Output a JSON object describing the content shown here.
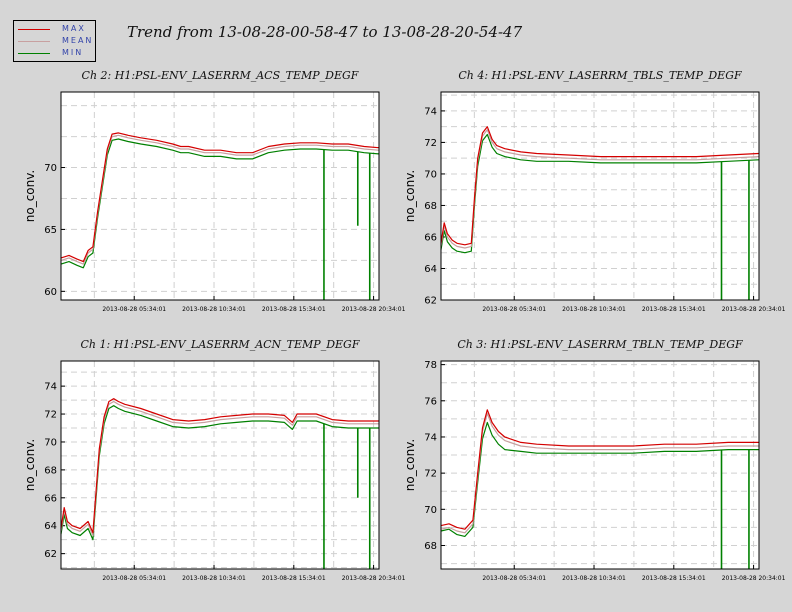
{
  "title": "Trend from 13-08-28-00-58-47 to 13-08-28-20-54-47",
  "legend": {
    "items": [
      {
        "label": "MAX",
        "color": "#d40000"
      },
      {
        "label": "MEAN",
        "color": "#c8a0a0"
      },
      {
        "label": "MIN",
        "color": "#008000"
      }
    ]
  },
  "chart_data": [
    {
      "type": "line",
      "title": "Ch 2: H1:PSL-ENV_LASERRM_ACS_TEMP_DEGF",
      "ylabel": "no_conv.",
      "xlabel": "",
      "xlim": [
        0,
        19.93
      ],
      "ylim": [
        59.3,
        76.1
      ],
      "yticks": [
        60,
        65,
        70
      ],
      "xticks": [
        {
          "x": 4.59,
          "label": "2013-08-28 05:34:01"
        },
        {
          "x": 9.59,
          "label": "2013-08-28 10:34:01"
        },
        {
          "x": 14.59,
          "label": "2013-08-28 15:34:01"
        },
        {
          "x": 19.59,
          "label": "2013-08-28 20:34:01"
        }
      ],
      "grid": true,
      "x": [
        0,
        0.5,
        1.0,
        1.4,
        1.7,
        2.0,
        2.3,
        2.6,
        2.9,
        3.2,
        3.6,
        4.2,
        5,
        6,
        7,
        7.5,
        8,
        9,
        10,
        11,
        12,
        13,
        14,
        15,
        16,
        17,
        18,
        19,
        19.9
      ],
      "series": [
        {
          "name": "MAX",
          "color": "#d40000",
          "values": [
            62.7,
            62.9,
            62.6,
            62.4,
            63.3,
            63.6,
            66.5,
            69.0,
            71.5,
            72.7,
            72.8,
            72.6,
            72.4,
            72.2,
            71.9,
            71.7,
            71.7,
            71.4,
            71.4,
            71.2,
            71.2,
            71.7,
            71.9,
            72.0,
            72.0,
            71.9,
            71.9,
            71.7,
            71.6
          ]
        },
        {
          "name": "MEAN",
          "color": "#c8a0a0",
          "values": [
            62.5,
            62.7,
            62.4,
            62.2,
            63.1,
            63.4,
            66.3,
            68.8,
            71.3,
            72.5,
            72.6,
            72.4,
            72.2,
            72.0,
            71.7,
            71.5,
            71.5,
            71.2,
            71.2,
            71.0,
            71.0,
            71.5,
            71.7,
            71.8,
            71.8,
            71.7,
            71.7,
            71.5,
            71.4
          ]
        },
        {
          "name": "MIN",
          "color": "#008000",
          "values": [
            62.2,
            62.4,
            62.1,
            61.9,
            62.8,
            63.1,
            66.0,
            68.5,
            71.0,
            72.2,
            72.3,
            72.1,
            71.9,
            71.7,
            71.4,
            71.2,
            71.2,
            70.9,
            70.9,
            70.7,
            70.7,
            71.2,
            71.4,
            71.5,
            71.5,
            71.4,
            71.4,
            71.2,
            71.1
          ]
        }
      ],
      "min_drops": [
        {
          "x": 16.48,
          "value": 59.3
        },
        {
          "x": 18.6,
          "value": 65.3
        },
        {
          "x": 19.35,
          "value": 59.3
        }
      ]
    },
    {
      "type": "line",
      "title": "Ch 4: H1:PSL-ENV_LASERRM_TBLS_TEMP_DEGF",
      "ylabel": "no_conv.",
      "xlabel": "",
      "xlim": [
        0,
        19.93
      ],
      "ylim": [
        62.0,
        75.2
      ],
      "yticks": [
        62,
        64,
        66,
        68,
        70,
        72,
        74
      ],
      "xticks": [
        {
          "x": 4.59,
          "label": "2013-08-28 05:34:01"
        },
        {
          "x": 9.59,
          "label": "2013-08-28 10:34:01"
        },
        {
          "x": 14.59,
          "label": "2013-08-28 15:34:01"
        },
        {
          "x": 19.59,
          "label": "2013-08-28 20:34:01"
        }
      ],
      "grid": true,
      "x": [
        0,
        0.2,
        0.4,
        0.7,
        1.0,
        1.5,
        1.9,
        2.1,
        2.3,
        2.6,
        2.9,
        3.2,
        3.5,
        4,
        5,
        6,
        8,
        10,
        12,
        14,
        16,
        18,
        19.9
      ],
      "series": [
        {
          "name": "MAX",
          "color": "#d40000",
          "values": [
            65.6,
            66.9,
            66.2,
            65.8,
            65.6,
            65.5,
            65.6,
            68.5,
            71.0,
            72.6,
            73.0,
            72.2,
            71.8,
            71.6,
            71.4,
            71.3,
            71.2,
            71.1,
            71.1,
            71.1,
            71.1,
            71.2,
            71.3
          ]
        },
        {
          "name": "MEAN",
          "color": "#c8a0a0",
          "values": [
            65.4,
            66.7,
            66.0,
            65.6,
            65.4,
            65.3,
            65.4,
            68.3,
            70.8,
            72.4,
            72.8,
            72.0,
            71.6,
            71.4,
            71.2,
            71.1,
            71.0,
            70.9,
            70.9,
            70.9,
            70.9,
            71.0,
            71.1
          ]
        },
        {
          "name": "MIN",
          "color": "#008000",
          "values": [
            65.2,
            66.4,
            65.7,
            65.3,
            65.1,
            65.0,
            65.1,
            68.0,
            70.5,
            72.1,
            72.5,
            71.7,
            71.3,
            71.1,
            70.9,
            70.8,
            70.8,
            70.7,
            70.7,
            70.7,
            70.7,
            70.8,
            70.9
          ]
        }
      ],
      "min_drops": [
        {
          "x": 17.58,
          "value": 62.0
        },
        {
          "x": 19.3,
          "value": 62.0
        }
      ]
    },
    {
      "type": "line",
      "title": "Ch 1: H1:PSL-ENV_LASERRM_ACN_TEMP_DEGF",
      "ylabel": "no_conv.",
      "xlabel": "",
      "xlim": [
        0,
        19.93
      ],
      "ylim": [
        60.9,
        75.8
      ],
      "yticks": [
        62,
        64,
        66,
        68,
        70,
        72,
        74
      ],
      "xticks": [
        {
          "x": 4.59,
          "label": "2013-08-28 05:34:01"
        },
        {
          "x": 9.59,
          "label": "2013-08-28 10:34:01"
        },
        {
          "x": 14.59,
          "label": "2013-08-28 15:34:01"
        },
        {
          "x": 19.59,
          "label": "2013-08-28 20:34:01"
        }
      ],
      "grid": true,
      "x": [
        0,
        0.2,
        0.4,
        0.7,
        1.2,
        1.7,
        2.0,
        2.2,
        2.4,
        2.7,
        3.0,
        3.3,
        3.6,
        4,
        5,
        6,
        7,
        8,
        9,
        10,
        11,
        12,
        13,
        14,
        14.5,
        14.8,
        15,
        16,
        17,
        18,
        19,
        19.9
      ],
      "series": [
        {
          "name": "MAX",
          "color": "#d40000",
          "values": [
            63.8,
            65.3,
            64.3,
            64.0,
            63.8,
            64.3,
            63.5,
            66.5,
            69.5,
            71.8,
            72.9,
            73.1,
            72.9,
            72.7,
            72.4,
            72.0,
            71.6,
            71.5,
            71.6,
            71.8,
            71.9,
            72.0,
            72.0,
            71.9,
            71.4,
            72.0,
            72.0,
            72.0,
            71.6,
            71.5,
            71.5,
            71.5
          ]
        },
        {
          "name": "MEAN",
          "color": "#c8a0a0",
          "values": [
            63.6,
            65.1,
            64.1,
            63.8,
            63.6,
            64.1,
            63.3,
            66.3,
            69.3,
            71.6,
            72.7,
            72.9,
            72.7,
            72.5,
            72.2,
            71.8,
            71.4,
            71.3,
            71.4,
            71.6,
            71.7,
            71.8,
            71.8,
            71.7,
            71.2,
            71.8,
            71.8,
            71.8,
            71.4,
            71.3,
            71.3,
            71.3
          ]
        },
        {
          "name": "MIN",
          "color": "#008000",
          "values": [
            63.4,
            64.8,
            63.8,
            63.5,
            63.3,
            63.8,
            63.0,
            66.0,
            69.0,
            71.3,
            72.4,
            72.6,
            72.4,
            72.2,
            71.9,
            71.5,
            71.1,
            71.0,
            71.1,
            71.3,
            71.4,
            71.5,
            71.5,
            71.4,
            70.9,
            71.5,
            71.5,
            71.5,
            71.1,
            71.0,
            71.0,
            71.0
          ]
        }
      ],
      "min_drops": [
        {
          "x": 16.48,
          "value": 60.9
        },
        {
          "x": 18.6,
          "value": 66.0
        },
        {
          "x": 19.35,
          "value": 60.9
        }
      ]
    },
    {
      "type": "line",
      "title": "Ch 3: H1:PSL-ENV_LASERRM_TBLN_TEMP_DEGF",
      "ylabel": "no_conv.",
      "xlabel": "",
      "xlim": [
        0,
        19.93
      ],
      "ylim": [
        66.7,
        78.2
      ],
      "yticks": [
        68,
        70,
        72,
        74,
        76,
        78
      ],
      "xticks": [
        {
          "x": 4.59,
          "label": "2013-08-28 05:34:01"
        },
        {
          "x": 9.59,
          "label": "2013-08-28 10:34:01"
        },
        {
          "x": 14.59,
          "label": "2013-08-28 15:34:01"
        },
        {
          "x": 19.59,
          "label": "2013-08-28 20:34:01"
        }
      ],
      "grid": true,
      "x": [
        0,
        0.5,
        1.0,
        1.5,
        2.0,
        2.3,
        2.6,
        2.9,
        3.2,
        3.6,
        4,
        5,
        6,
        8,
        10,
        12,
        14,
        16,
        18,
        19.9
      ],
      "series": [
        {
          "name": "MAX",
          "color": "#d40000",
          "values": [
            69.1,
            69.2,
            69.0,
            68.9,
            69.4,
            72.0,
            74.5,
            75.5,
            74.8,
            74.3,
            74.0,
            73.7,
            73.6,
            73.5,
            73.5,
            73.5,
            73.6,
            73.6,
            73.7,
            73.7
          ]
        },
        {
          "name": "MEAN",
          "color": "#c8a0a0",
          "values": [
            68.9,
            69.0,
            68.8,
            68.7,
            69.2,
            71.8,
            74.3,
            75.3,
            74.6,
            74.1,
            73.8,
            73.5,
            73.4,
            73.3,
            73.3,
            73.3,
            73.4,
            73.4,
            73.5,
            73.5
          ]
        },
        {
          "name": "MIN",
          "color": "#008000",
          "values": [
            68.8,
            68.9,
            68.6,
            68.5,
            69.0,
            71.5,
            73.9,
            74.8,
            74.1,
            73.6,
            73.3,
            73.2,
            73.1,
            73.1,
            73.1,
            73.1,
            73.2,
            73.2,
            73.3,
            73.3
          ]
        }
      ],
      "min_drops": [
        {
          "x": 17.58,
          "value": 66.7
        },
        {
          "x": 19.3,
          "value": 66.7
        }
      ]
    }
  ]
}
